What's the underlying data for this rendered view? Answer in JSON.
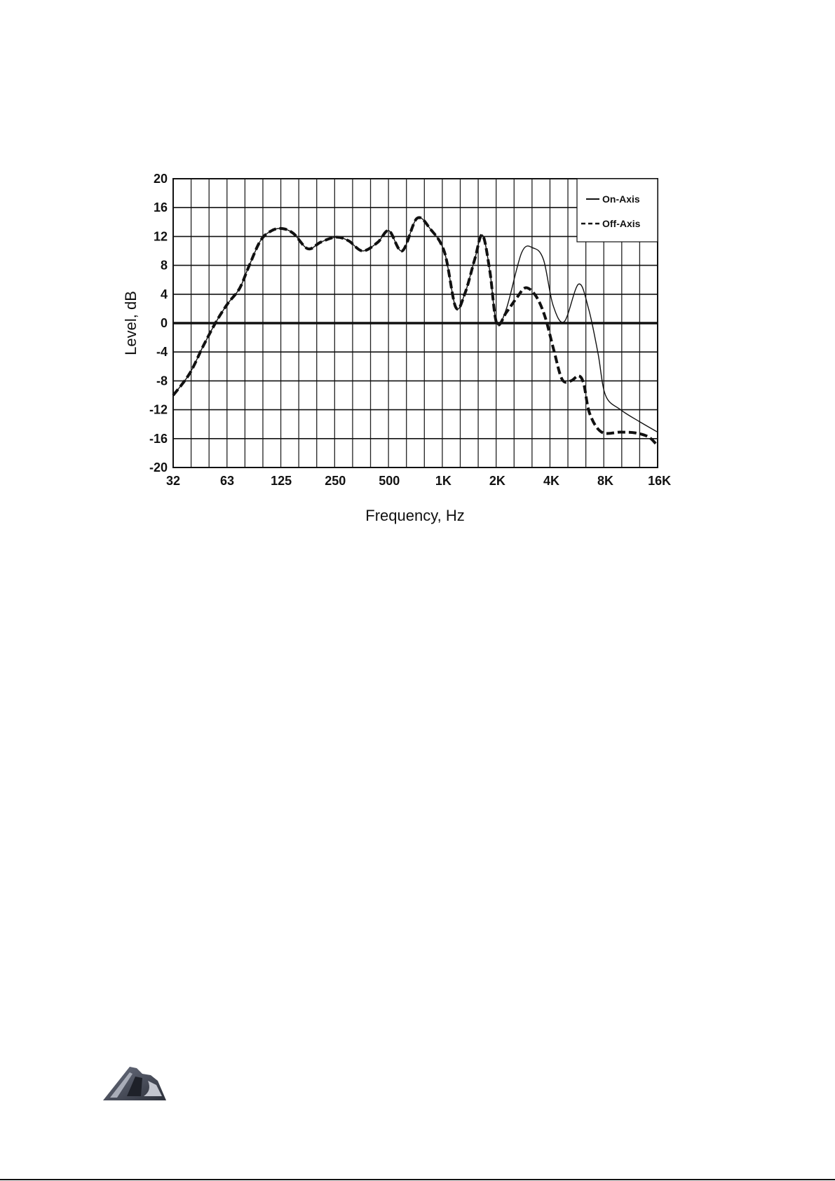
{
  "chart_data": {
    "type": "line",
    "title": "",
    "xlabel": "Frequency, Hz",
    "ylabel": "Level, dB",
    "xscale": "log2",
    "xlim": [
      32,
      16000
    ],
    "ylim": [
      -20,
      20
    ],
    "x_ticks": [
      32,
      63,
      125,
      250,
      500,
      1000,
      2000,
      4000,
      8000,
      16000
    ],
    "x_tick_labels": [
      "32",
      "63",
      "125",
      "250",
      "500",
      "1K",
      "2K",
      "4K",
      "8K",
      "16K"
    ],
    "y_ticks": [
      20,
      16,
      12,
      8,
      4,
      0,
      -4,
      -8,
      -12,
      -16,
      -20
    ],
    "y_tick_labels": [
      "20",
      "16",
      "12",
      "8",
      "4",
      "0",
      "-4",
      "-8",
      "-12",
      "-16",
      "-20"
    ],
    "grid": {
      "vertical": "1/3 octave",
      "horizontal_step_db": 4,
      "emphasized_zero_line": true
    },
    "legend_placement": "top-right",
    "series": [
      {
        "name": "On-Axis",
        "style": "solid-thin",
        "color": "#111111",
        "points": [
          [
            32,
            -10
          ],
          [
            39.5,
            -7
          ],
          [
            47,
            -3.2
          ],
          [
            55,
            0
          ],
          [
            64,
            2.6
          ],
          [
            75,
            4.8
          ],
          [
            84,
            7.7
          ],
          [
            98,
            11.4
          ],
          [
            113,
            12.8
          ],
          [
            130,
            13.1
          ],
          [
            150,
            12.4
          ],
          [
            180,
            10.3
          ],
          [
            212,
            11.2
          ],
          [
            258,
            11.9
          ],
          [
            304,
            11.4
          ],
          [
            363,
            10
          ],
          [
            442,
            11.2
          ],
          [
            510,
            12.8
          ],
          [
            604,
            10
          ],
          [
            730,
            14.5
          ],
          [
            869,
            13
          ],
          [
            1040,
            9.8
          ],
          [
            1200,
            2.2
          ],
          [
            1350,
            4.1
          ],
          [
            1530,
            8.8
          ],
          [
            1690,
            12.2
          ],
          [
            1860,
            7.2
          ],
          [
            2030,
            0
          ],
          [
            2300,
            2
          ],
          [
            2800,
            9.8
          ],
          [
            3250,
            10.4
          ],
          [
            3700,
            8.8
          ],
          [
            4180,
            2.5
          ],
          [
            4830,
            0.2
          ],
          [
            5800,
            5.4
          ],
          [
            6600,
            2
          ],
          [
            7450,
            -4.2
          ],
          [
            8200,
            -10
          ],
          [
            9950,
            -12
          ],
          [
            12600,
            -13.6
          ],
          [
            16000,
            -15.1
          ]
        ]
      },
      {
        "name": "Off-Axis",
        "style": "dashed-thick",
        "color": "#111111",
        "points": [
          [
            32,
            -10
          ],
          [
            39.5,
            -7
          ],
          [
            47,
            -3.2
          ],
          [
            55,
            0
          ],
          [
            64,
            2.6
          ],
          [
            75,
            4.8
          ],
          [
            84,
            7.7
          ],
          [
            98,
            11.4
          ],
          [
            113,
            12.8
          ],
          [
            130,
            13.1
          ],
          [
            150,
            12.4
          ],
          [
            180,
            10.3
          ],
          [
            212,
            11.2
          ],
          [
            258,
            11.9
          ],
          [
            304,
            11.4
          ],
          [
            363,
            10
          ],
          [
            442,
            11.2
          ],
          [
            510,
            12.8
          ],
          [
            604,
            10
          ],
          [
            730,
            14.5
          ],
          [
            869,
            13
          ],
          [
            1040,
            9.8
          ],
          [
            1200,
            2.2
          ],
          [
            1350,
            4.1
          ],
          [
            1530,
            8.8
          ],
          [
            1690,
            12.2
          ],
          [
            1860,
            7.2
          ],
          [
            2030,
            0
          ],
          [
            2300,
            1.5
          ],
          [
            2640,
            3.6
          ],
          [
            2950,
            4.9
          ],
          [
            3350,
            3.8
          ],
          [
            3760,
            1
          ],
          [
            4220,
            -3.7
          ],
          [
            4700,
            -7.8
          ],
          [
            5260,
            -8
          ],
          [
            5800,
            -7.3
          ],
          [
            6200,
            -8.4
          ],
          [
            6690,
            -12.5
          ],
          [
            7800,
            -15.1
          ],
          [
            9950,
            -15.1
          ],
          [
            12000,
            -15.2
          ],
          [
            14300,
            -15.8
          ],
          [
            16000,
            -17
          ]
        ]
      }
    ]
  },
  "logo": {
    "text": "ADA",
    "color": "#3a3f4a"
  }
}
